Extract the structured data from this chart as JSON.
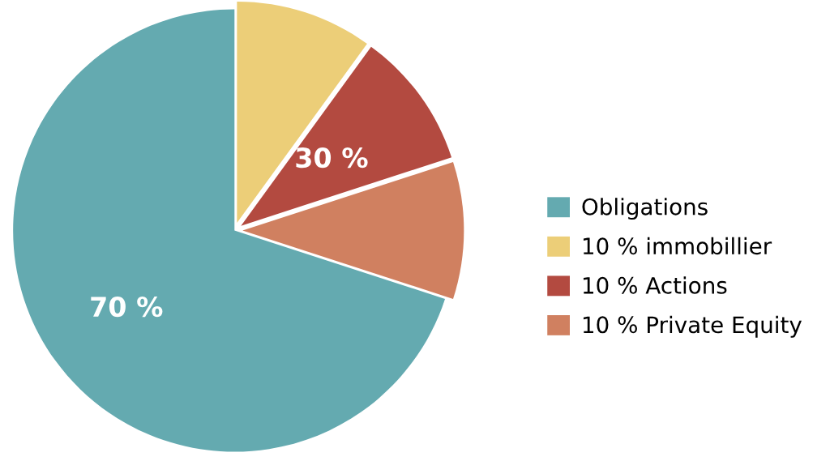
{
  "chart_data": {
    "type": "pie",
    "categories": [
      "10 % immobillier",
      "10 % Actions",
      "10 % Private Equity",
      "Obligations"
    ],
    "values": [
      10,
      10,
      10,
      70
    ],
    "colors": [
      "#ecce78",
      "#b34a40",
      "#d08060",
      "#64aab0"
    ],
    "value_labels": [
      null,
      null,
      null,
      "70 %"
    ],
    "annotations": [
      "30 %"
    ],
    "legend": "right"
  }
}
